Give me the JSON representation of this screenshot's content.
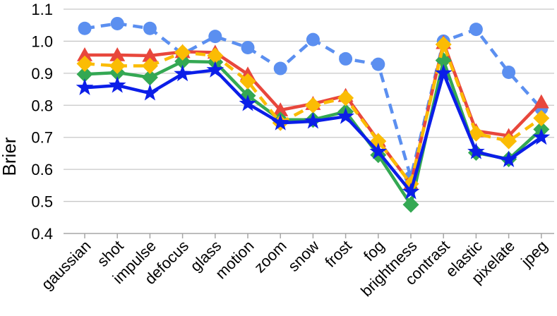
{
  "chart_data": {
    "type": "line",
    "categories": [
      "gaussian",
      "shot",
      "impulse",
      "defocus",
      "glass",
      "motion",
      "zoom",
      "snow",
      "frost",
      "fog",
      "brightness",
      "contrast",
      "elastic",
      "pixelate",
      "jpeg"
    ],
    "ylabel": "Brier",
    "xlabel": "",
    "ylim": [
      0.4,
      1.1
    ],
    "yticks": [
      "0.4",
      "0.5",
      "0.6",
      "0.7",
      "0.8",
      "0.9",
      "1.0",
      "1.1"
    ],
    "grid": "horizontal",
    "series": [
      {
        "color": "#5b8ff0",
        "marker": "circle",
        "dashed": true,
        "values": [
          1.04,
          1.055,
          1.04,
          0.96,
          1.015,
          0.98,
          0.915,
          1.005,
          0.945,
          0.928,
          0.575,
          1.0,
          1.037,
          0.903,
          0.79
        ]
      },
      {
        "color": "#e8473c",
        "marker": "triangle",
        "dashed": false,
        "values": [
          0.957,
          0.957,
          0.955,
          0.967,
          0.965,
          0.897,
          0.785,
          0.805,
          0.83,
          0.69,
          0.555,
          0.995,
          0.72,
          0.705,
          0.81
        ]
      },
      {
        "color": "#34a853",
        "marker": "diamond",
        "dashed": false,
        "values": [
          0.897,
          0.902,
          0.887,
          0.937,
          0.935,
          0.83,
          0.755,
          0.755,
          0.78,
          0.645,
          0.49,
          0.94,
          0.652,
          0.632,
          0.725
        ]
      },
      {
        "color": "#fbbc04",
        "marker": "diamond",
        "dashed": true,
        "values": [
          0.93,
          0.923,
          0.923,
          0.965,
          0.955,
          0.875,
          0.745,
          0.8,
          0.823,
          0.688,
          0.555,
          0.99,
          0.712,
          0.688,
          0.76
        ]
      },
      {
        "color": "#0b1ee8",
        "marker": "star",
        "dashed": false,
        "values": [
          0.855,
          0.862,
          0.838,
          0.898,
          0.91,
          0.805,
          0.745,
          0.75,
          0.765,
          0.655,
          0.53,
          0.9,
          0.655,
          0.63,
          0.7
        ]
      }
    ]
  }
}
